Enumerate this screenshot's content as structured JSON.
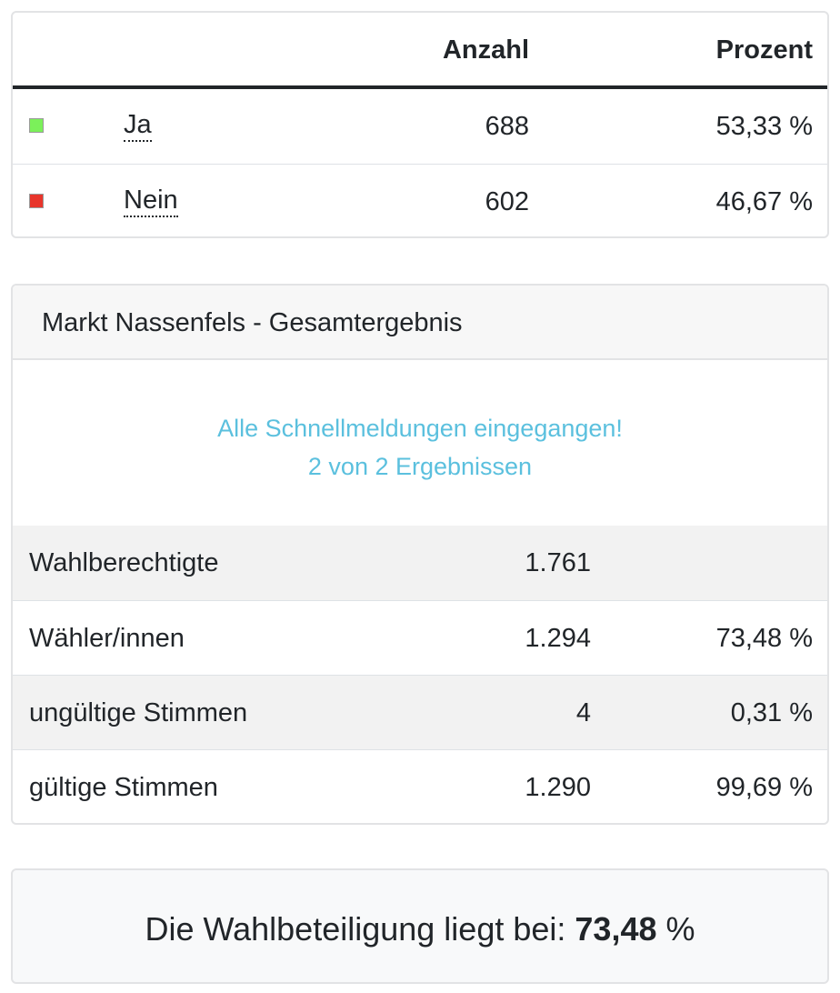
{
  "results": {
    "header": {
      "count": "Anzahl",
      "percent": "Prozent"
    },
    "rows": [
      {
        "name": "Ja",
        "count": "688",
        "percent": "53,33 %",
        "color": "#7bf05a"
      },
      {
        "name": "Nein",
        "count": "602",
        "percent": "46,67 %",
        "color": "#e8352b"
      }
    ]
  },
  "summary": {
    "title": "Markt Nassenfels - Gesamtergebnis",
    "notice_line1": "Alle Schnellmeldungen eingegangen!",
    "notice_line2": "2 von 2 Ergebnissen",
    "rows": [
      {
        "label": "Wahlberechtigte",
        "value": "1.761",
        "percent": ""
      },
      {
        "label": "Wähler/innen",
        "value": "1.294",
        "percent": "73,48 %"
      },
      {
        "label": "ungültige Stimmen",
        "value": "4",
        "percent": "0,31 %"
      },
      {
        "label": "gültige Stimmen",
        "value": "1.290",
        "percent": "99,69 %"
      }
    ]
  },
  "turnout": {
    "prefix": "Die Wahlbeteiligung liegt bei:",
    "value": "73,48",
    "unit": "%"
  }
}
